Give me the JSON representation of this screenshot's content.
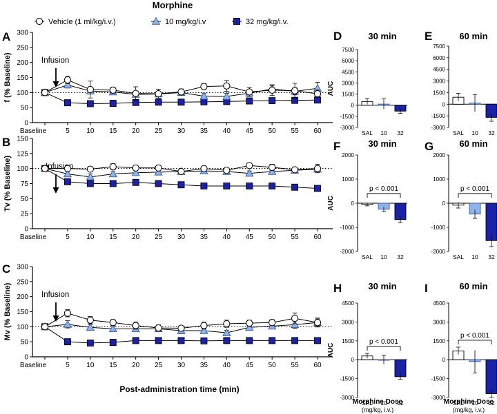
{
  "figure_title": "Morphine",
  "legend": [
    {
      "label": "Vehicle (1 ml/kg/i.v.)",
      "marker": "circle",
      "fill": "#ffffff"
    },
    {
      "label": "10  mg/kg/i.v",
      "marker": "triangle",
      "fill": "#8fb3e8"
    },
    {
      "label": "32 mg/kg/i.v.",
      "marker": "square",
      "fill": "#1c22a6"
    }
  ],
  "colors": {
    "vehicle": "#ffffff",
    "dose10": "#8fb3e8",
    "dose32": "#1c22a6",
    "axis": "#000000"
  },
  "shared_x_label": "Post-administration time (min)",
  "bar_x_label_line1": "Morphine Dose",
  "bar_x_label_line2": "(mg/kg, i.v.)",
  "chart_data": [
    {
      "panel": "A",
      "type": "line",
      "ylabel": "f (% Baseline)",
      "ylim": [
        0,
        300
      ],
      "yticks": [
        0,
        50,
        100,
        150,
        200,
        250,
        300
      ],
      "categories": [
        "Baseline",
        "5",
        "10",
        "15",
        "20",
        "25",
        "30",
        "35",
        "40",
        "45",
        "50",
        "55",
        "60"
      ],
      "annotation": "Infusion",
      "series": [
        {
          "name": "Vehicle (1 ml/kg/i.v.)",
          "values": [
            100,
            142,
            110,
            108,
            97,
            96,
            102,
            120,
            122,
            102,
            108,
            106,
            96
          ],
          "errors": [
            5,
            12,
            28,
            10,
            22,
            15,
            10,
            10,
            18,
            15,
            18,
            25,
            12
          ]
        },
        {
          "name": "10  mg/kg/i.v",
          "values": [
            100,
            125,
            105,
            102,
            94,
            95,
            100,
            88,
            87,
            98,
            112,
            104,
            114
          ],
          "errors": [
            5,
            10,
            10,
            8,
            8,
            8,
            8,
            10,
            10,
            10,
            10,
            12,
            20
          ]
        },
        {
          "name": "32 mg/kg/i.v.",
          "values": [
            100,
            66,
            63,
            64,
            67,
            68,
            68,
            69,
            70,
            72,
            73,
            74,
            75
          ],
          "errors": [
            3,
            5,
            4,
            4,
            4,
            4,
            4,
            4,
            4,
            4,
            4,
            4,
            6
          ]
        }
      ]
    },
    {
      "panel": "B",
      "type": "line",
      "ylabel": "Tv (% Baseline)",
      "ylim": [
        0,
        150
      ],
      "yticks": [
        0,
        25,
        50,
        75,
        100,
        125,
        150
      ],
      "categories": [
        "Baseline",
        "5",
        "10",
        "15",
        "20",
        "25",
        "30",
        "35",
        "40",
        "45",
        "50",
        "55",
        "60"
      ],
      "annotation": "Infusion",
      "series": [
        {
          "name": "Vehicle (1 ml/kg/i.v.)",
          "values": [
            100,
            100,
            99,
            103,
            101,
            101,
            95,
            100,
            97,
            105,
            102,
            98,
            100
          ],
          "errors": [
            2,
            3,
            4,
            5,
            4,
            4,
            3,
            3,
            4,
            4,
            5,
            3,
            7
          ]
        },
        {
          "name": "10  mg/kg/i.v",
          "values": [
            100,
            91,
            86,
            91,
            93,
            94,
            95,
            96,
            95,
            92,
            95,
            97,
            99
          ],
          "errors": [
            2,
            4,
            5,
            4,
            4,
            4,
            4,
            4,
            4,
            4,
            4,
            4,
            4
          ]
        },
        {
          "name": "32 mg/kg/i.v.",
          "values": [
            100,
            78,
            75,
            75,
            77,
            75,
            73,
            71,
            71,
            71,
            71,
            69,
            67
          ],
          "errors": [
            2,
            3,
            3,
            3,
            3,
            3,
            3,
            3,
            3,
            3,
            3,
            3,
            3
          ]
        }
      ]
    },
    {
      "panel": "C",
      "type": "line",
      "ylabel": "Mv (% Baseline)",
      "ylim": [
        0,
        300
      ],
      "yticks": [
        0,
        50,
        100,
        150,
        200,
        250,
        300
      ],
      "categories": [
        "Baseline",
        "5",
        "10",
        "15",
        "20",
        "25",
        "30",
        "35",
        "40",
        "45",
        "50",
        "55",
        "60"
      ],
      "annotation": "Infusion",
      "series": [
        {
          "name": "Vehicle (1 ml/kg/i.v.)",
          "values": [
            100,
            145,
            122,
            114,
            104,
            96,
            95,
            104,
            110,
            112,
            114,
            128,
            114
          ],
          "errors": [
            5,
            12,
            12,
            10,
            12,
            10,
            8,
            12,
            12,
            10,
            10,
            18,
            15
          ]
        },
        {
          "name": "10  mg/kg/i.v",
          "values": [
            100,
            108,
            98,
            93,
            93,
            93,
            87,
            87,
            80,
            98,
            102,
            107,
            114
          ],
          "errors": [
            5,
            12,
            10,
            8,
            8,
            8,
            10,
            8,
            8,
            8,
            8,
            12,
            12
          ]
        },
        {
          "name": "32 mg/kg/i.v.",
          "values": [
            100,
            50,
            46,
            48,
            54,
            54,
            54,
            53,
            54,
            54,
            54,
            54,
            54
          ],
          "errors": [
            3,
            4,
            4,
            4,
            4,
            4,
            4,
            4,
            4,
            4,
            4,
            4,
            4
          ]
        }
      ]
    },
    {
      "panel": "D",
      "type": "bar",
      "title": "30 min",
      "ylabel": "AUC",
      "categories": [
        "SAL",
        "10",
        "32"
      ],
      "values": [
        500,
        150,
        -800
      ],
      "errors": [
        400,
        700,
        300
      ],
      "ylim": [
        -3000,
        7500
      ],
      "yticks": [
        -3000,
        -1500,
        0,
        1500,
        3000,
        4500,
        6000,
        7500
      ],
      "significance": ""
    },
    {
      "panel": "E",
      "type": "bar",
      "title": "60 min",
      "ylabel": "",
      "categories": [
        "SAL",
        "10",
        "32"
      ],
      "values": [
        900,
        150,
        -1700
      ],
      "errors": [
        500,
        1100,
        500
      ],
      "ylim": [
        -3000,
        7500
      ],
      "yticks": [
        -3000,
        -1500,
        0,
        1500,
        3000,
        4500,
        6000,
        7500
      ],
      "significance": ""
    },
    {
      "panel": "F",
      "type": "bar",
      "title": "30 min",
      "ylabel": "AUC",
      "categories": [
        "SAL",
        "10",
        "32"
      ],
      "values": [
        -50,
        -250,
        -680
      ],
      "errors": [
        60,
        100,
        130
      ],
      "ylim": [
        -2000,
        2000
      ],
      "yticks": [
        -2000,
        -1000,
        0,
        1000,
        2000
      ],
      "significance": "p < 0.001"
    },
    {
      "panel": "G",
      "type": "bar",
      "title": "60 min",
      "ylabel": "",
      "categories": [
        "SAL",
        "10",
        "32"
      ],
      "values": [
        -80,
        -450,
        -1550
      ],
      "errors": [
        120,
        180,
        250
      ],
      "ylim": [
        -2000,
        2000
      ],
      "yticks": [
        -2000,
        -1000,
        0,
        1000,
        2000
      ],
      "significance": "p < 0.001"
    },
    {
      "panel": "H",
      "type": "bar",
      "title": "30 min",
      "ylabel": "AUC",
      "categories": [
        "SAL",
        "10",
        "32"
      ],
      "values": [
        300,
        0,
        -1350
      ],
      "errors": [
        200,
        350,
        200
      ],
      "ylim": [
        -3000,
        4500
      ],
      "yticks": [
        -3000,
        -1500,
        0,
        1500,
        3000,
        4500
      ],
      "significance": "p < 0.001"
    },
    {
      "panel": "I",
      "type": "bar",
      "title": "60 min",
      "ylabel": "",
      "categories": [
        "SAL",
        "10",
        "32"
      ],
      "values": [
        700,
        -150,
        -2700
      ],
      "errors": [
        300,
        900,
        300
      ],
      "ylim": [
        -3000,
        4500
      ],
      "yticks": [
        -3000,
        -1500,
        0,
        1500,
        3000,
        4500
      ],
      "significance": "p < 0.001"
    }
  ]
}
